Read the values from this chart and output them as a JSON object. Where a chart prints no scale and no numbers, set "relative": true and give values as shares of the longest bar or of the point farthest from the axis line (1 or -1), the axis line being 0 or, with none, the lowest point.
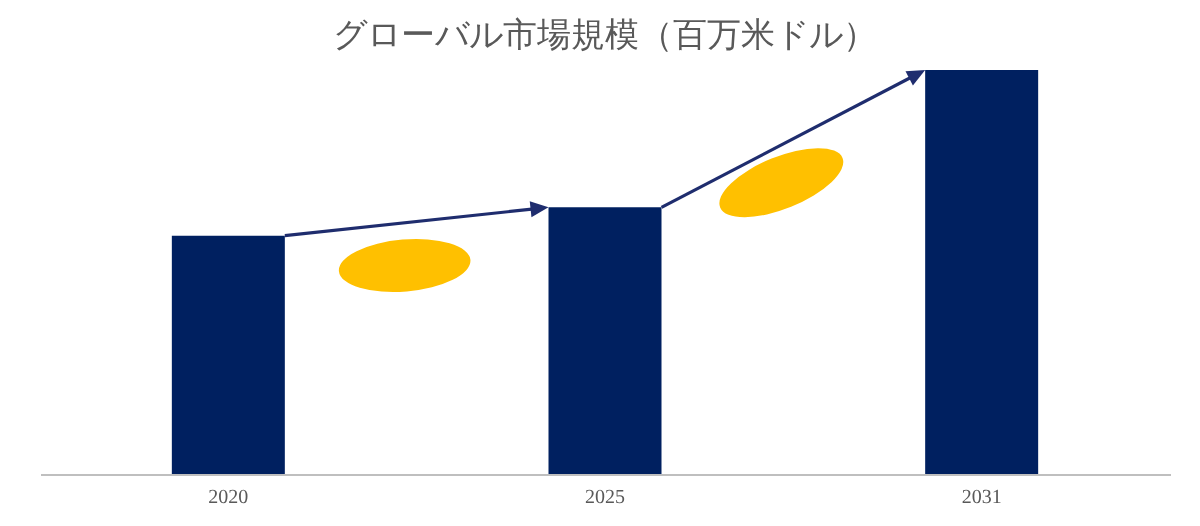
{
  "chart_data": {
    "type": "bar",
    "title": "グローバル市場規模（百万米ドル）",
    "categories": [
      "2020",
      "2025",
      "2031"
    ],
    "relative": true,
    "series": [
      {
        "color": "#002060",
        "values": [
          0.59,
          0.66,
          1
        ]
      }
    ]
  }
}
